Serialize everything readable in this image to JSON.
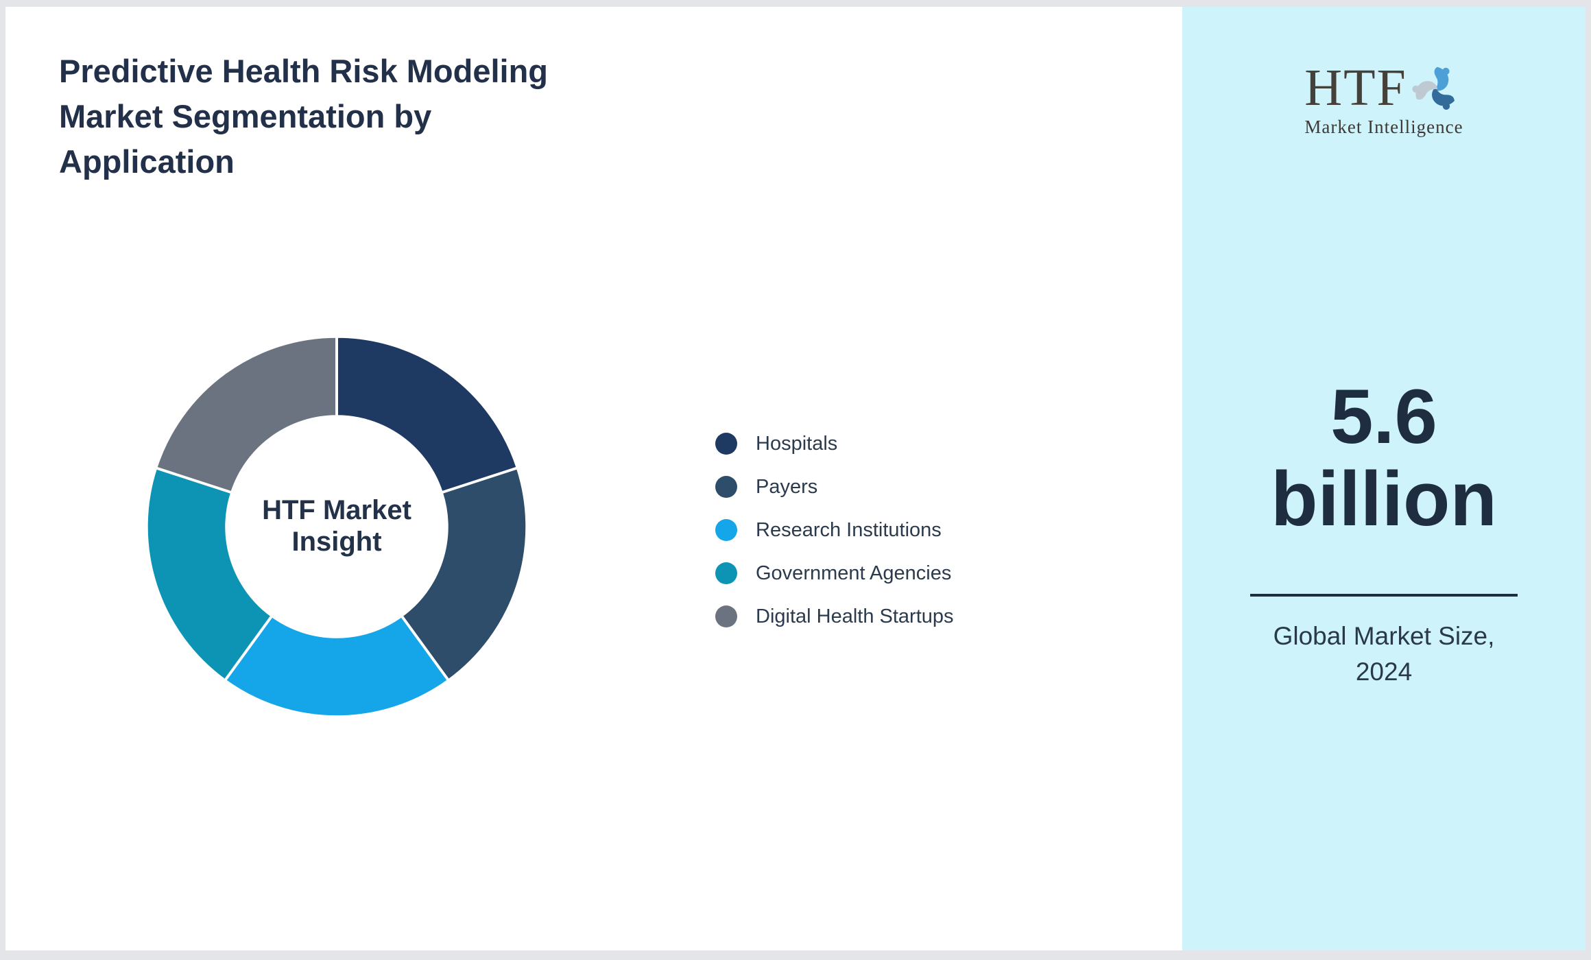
{
  "title": "Predictive Health Risk Modeling Market Segmentation by Application",
  "title_lines": [
    "Predictive Health Risk Modeling",
    "Market Segmentation by",
    "Application"
  ],
  "chart_data": {
    "type": "pie",
    "subtype": "donut",
    "start_angle_deg": 0,
    "direction": "clockwise",
    "hole_ratio": 0.58,
    "values_estimated": true,
    "center_label": "HTF Market Insight",
    "categories": [
      "Hospitals",
      "Payers",
      "Research Institutions",
      "Government Agencies",
      "Digital Health Startups"
    ],
    "values": [
      20,
      20,
      20,
      20,
      20
    ],
    "colors": [
      "#1E3A62",
      "#2E4D6B",
      "#15A6E9",
      "#0D94B5",
      "#6B7280"
    ],
    "legend_position": "right",
    "divider_color": "#FFFFFF"
  },
  "sidebar": {
    "background_color": "#CFF3FB",
    "logo": {
      "text": "HTF",
      "subtext": "Market Intelligence",
      "swirl_colors": [
        "#4C9FD7",
        "#336B9B",
        "#BFC9D2"
      ]
    },
    "value_line1": "5.6",
    "value_line2": "billion",
    "caption_line1": "Global Market Size,",
    "caption_line2": "2024"
  },
  "colors": {
    "page_background": "#E4E5E9",
    "card_background": "#FFFFFF",
    "title_text": "#22304A",
    "accent_navy": "#1E2D40"
  }
}
